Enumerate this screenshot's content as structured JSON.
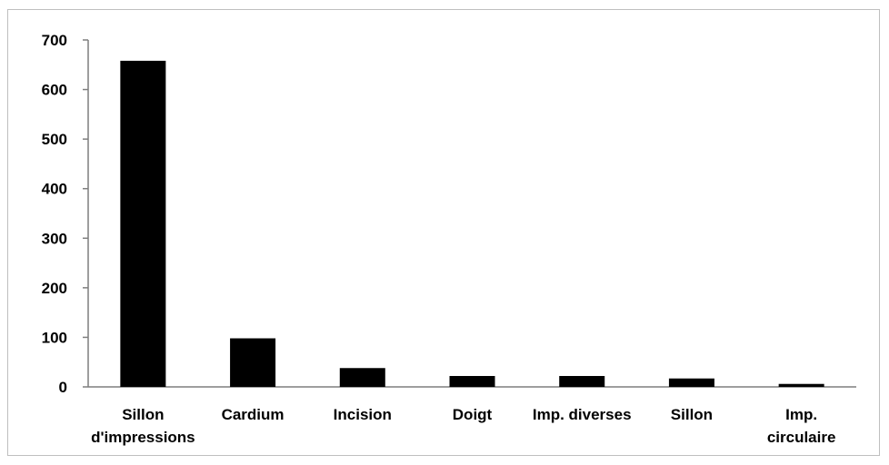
{
  "chart_data": {
    "type": "bar",
    "categories": [
      "Sillon d'impressions",
      "Cardium",
      "Incision",
      "Doigt",
      "Imp. diverses",
      "Sillon",
      "Imp. circulaire"
    ],
    "category_lines": [
      [
        "Sillon",
        "d'impressions"
      ],
      [
        "Cardium"
      ],
      [
        "Incision"
      ],
      [
        "Doigt"
      ],
      [
        "Imp. diverses"
      ],
      [
        "Sillon"
      ],
      [
        "Imp.",
        "circulaire"
      ]
    ],
    "values": [
      658,
      98,
      38,
      22,
      22,
      17,
      6
    ],
    "ylim": [
      0,
      700
    ],
    "yticks": [
      0,
      100,
      200,
      300,
      400,
      500,
      600,
      700
    ],
    "title": "",
    "xlabel": "",
    "ylabel": "",
    "grid": false,
    "bar_color": "#000000",
    "axis_color": "#7f7f7f"
  }
}
